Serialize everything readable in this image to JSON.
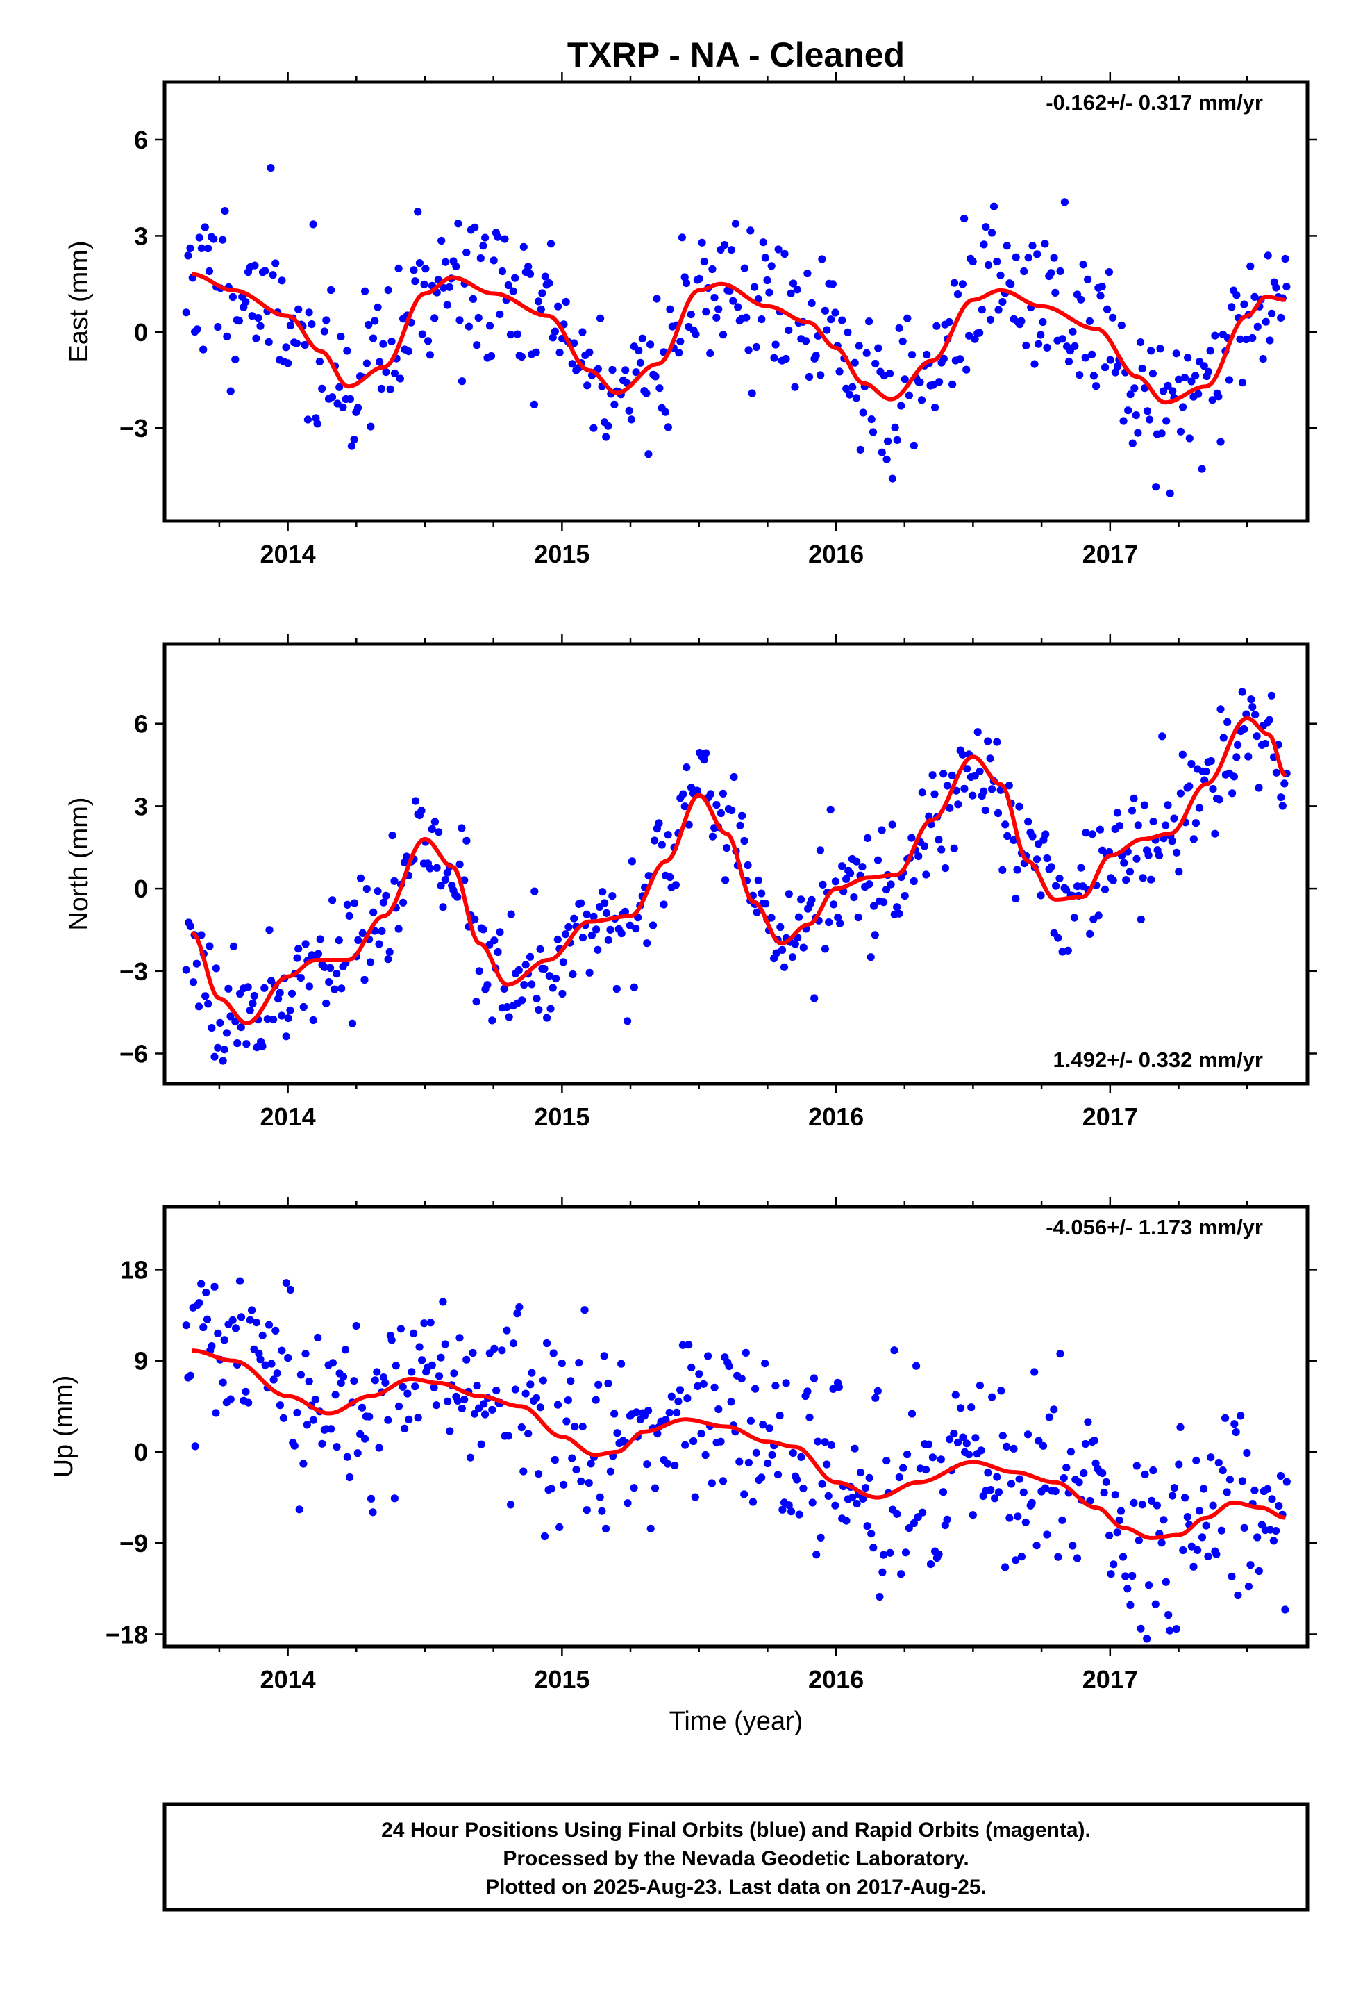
{
  "colors": {
    "final_orbits": "#0000ff",
    "rapid_orbits": "#ff00ff",
    "trend_fit": "#ff0000",
    "frame": "#000000"
  },
  "chart_data": {
    "type": "scatter",
    "title": "TXRP  - NA - Cleaned",
    "xlabel": "Time (year)",
    "xlim": [
      2013.55,
      2017.72
    ],
    "x_ticks": [
      2014,
      2015,
      2016,
      2017
    ],
    "x_tick_labels": [
      "2014",
      "2015",
      "2016",
      "2017"
    ],
    "grid": false,
    "panels": [
      {
        "id": "east",
        "ylabel": "East (mm)",
        "ylim": [
          -5.9,
          7.8
        ],
        "y_ticks": [
          -3,
          0,
          3,
          6
        ],
        "y_tick_labels": [
          "−3",
          "0",
          "3",
          "6"
        ],
        "rate_text": "-0.162+/- 0.317 mm/yr",
        "rate_position": "top-right",
        "data_range": [
          -5.7,
          7.6
        ],
        "noise_sd": 1.25,
        "seed": 11,
        "fit_x": [
          2013.65,
          2013.8,
          2014.0,
          2014.12,
          2014.22,
          2014.35,
          2014.5,
          2014.6,
          2014.75,
          2014.95,
          2015.1,
          2015.2,
          2015.35,
          2015.5,
          2015.58,
          2015.75,
          2015.9,
          2016.0,
          2016.1,
          2016.2,
          2016.35,
          2016.5,
          2016.6,
          2016.75,
          2016.95,
          2017.1,
          2017.2,
          2017.35,
          2017.5,
          2017.57,
          2017.64
        ],
        "fit_y": [
          1.8,
          1.3,
          0.5,
          -0.6,
          -1.7,
          -1.1,
          1.2,
          1.7,
          1.2,
          0.5,
          -1.2,
          -1.9,
          -1.0,
          1.3,
          1.5,
          0.8,
          0.3,
          -0.5,
          -1.6,
          -2.1,
          -0.9,
          1.0,
          1.3,
          0.8,
          0.1,
          -1.4,
          -2.2,
          -1.7,
          0.5,
          1.1,
          1.0
        ]
      },
      {
        "id": "north",
        "ylabel": "North (mm)",
        "ylim": [
          -7.1,
          8.9
        ],
        "y_ticks": [
          -6,
          -3,
          0,
          3,
          6
        ],
        "y_tick_labels": [
          "−6",
          "−3",
          "0",
          "3",
          "6"
        ],
        "rate_text": "1.492+/- 0.332 mm/yr",
        "rate_position": "bottom-right",
        "data_range": [
          -6.9,
          8.6
        ],
        "noise_sd": 1.05,
        "seed": 23,
        "fit_x": [
          2013.65,
          2013.75,
          2013.85,
          2014.0,
          2014.1,
          2014.22,
          2014.35,
          2014.5,
          2014.6,
          2014.7,
          2014.8,
          2014.95,
          2015.1,
          2015.25,
          2015.38,
          2015.5,
          2015.6,
          2015.7,
          2015.8,
          2015.9,
          2016.0,
          2016.12,
          2016.22,
          2016.35,
          2016.5,
          2016.6,
          2016.7,
          2016.8,
          2016.9,
          2017.0,
          2017.12,
          2017.22,
          2017.35,
          2017.5,
          2017.58,
          2017.64
        ],
        "fit_y": [
          -1.6,
          -4.0,
          -4.9,
          -3.2,
          -2.6,
          -2.6,
          -1.0,
          1.8,
          0.8,
          -2.0,
          -3.5,
          -2.6,
          -1.2,
          -1.0,
          1.0,
          3.4,
          2.0,
          -0.5,
          -2.0,
          -1.3,
          0.0,
          0.4,
          0.5,
          2.5,
          4.8,
          3.8,
          1.0,
          -0.4,
          -0.3,
          1.2,
          1.8,
          2.0,
          3.8,
          6.2,
          5.6,
          4.1
        ]
      },
      {
        "id": "up",
        "ylabel": "Up (mm)",
        "ylim": [
          -19.2,
          24.2
        ],
        "y_ticks": [
          -18,
          -9,
          0,
          9,
          18
        ],
        "y_tick_labels": [
          "−18",
          "−9",
          "0",
          "9",
          "18"
        ],
        "rate_text": "-4.056+/- 1.173 mm/yr",
        "rate_position": "top-right",
        "data_range": [
          -19.0,
          24.0
        ],
        "noise_sd": 4.6,
        "seed": 37,
        "fit_x": [
          2013.65,
          2013.8,
          2014.0,
          2014.15,
          2014.3,
          2014.45,
          2014.55,
          2014.7,
          2014.85,
          2015.0,
          2015.12,
          2015.2,
          2015.3,
          2015.45,
          2015.6,
          2015.75,
          2015.85,
          2016.0,
          2016.15,
          2016.3,
          2016.5,
          2016.65,
          2016.8,
          2016.95,
          2017.05,
          2017.15,
          2017.25,
          2017.35,
          2017.45,
          2017.55,
          2017.64
        ],
        "fit_y": [
          10.0,
          9.0,
          5.5,
          3.8,
          5.5,
          7.2,
          6.8,
          5.5,
          4.5,
          1.5,
          -0.3,
          0.0,
          2.0,
          3.2,
          2.5,
          1.0,
          0.5,
          -3.0,
          -4.5,
          -3.0,
          -1.0,
          -2.0,
          -3.0,
          -5.5,
          -7.5,
          -8.5,
          -8.2,
          -6.5,
          -5.0,
          -5.5,
          -6.5
        ]
      }
    ],
    "series": [
      {
        "name": "Final Orbits",
        "color": "#0000ff",
        "x_start": 2013.63,
        "x_end": 2017.645,
        "n_points": 520
      }
    ]
  },
  "footer": {
    "line1": "24 Hour Positions Using Final Orbits (blue) and Rapid Orbits (magenta).",
    "line2": "Processed by the Nevada Geodetic Laboratory.",
    "line3": "Plotted on 2025-Aug-23. Last data on 2017-Aug-25."
  }
}
